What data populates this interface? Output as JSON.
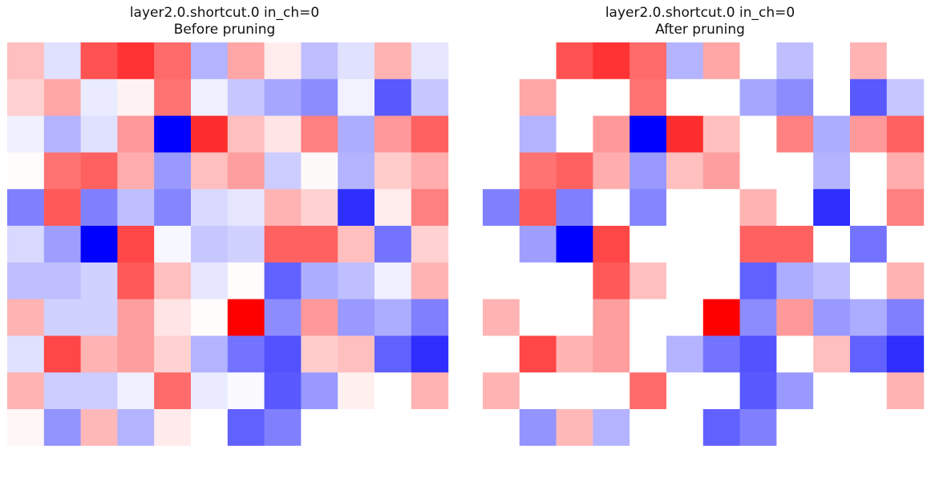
{
  "chart_data": [
    {
      "type": "heatmap",
      "title": "layer2.0.shortcut.0 in_ch=0",
      "subtitle": "Before pruning",
      "colormap": "bwr",
      "vmin": -1,
      "vmax": 1,
      "axes": "off",
      "rows": 12,
      "cols": 12,
      "values": [
        [
          0.25,
          -0.12,
          0.68,
          0.8,
          0.58,
          -0.3,
          0.35,
          0.07,
          -0.25,
          -0.12,
          0.3,
          -0.1
        ],
        [
          0.18,
          0.35,
          -0.08,
          0.05,
          0.55,
          -0.06,
          -0.22,
          -0.35,
          -0.45,
          -0.05,
          -0.65,
          -0.22
        ],
        [
          -0.06,
          -0.3,
          -0.12,
          0.4,
          -1.0,
          0.82,
          0.25,
          0.1,
          0.5,
          -0.32,
          0.4,
          0.62
        ],
        [
          0.01,
          0.55,
          0.62,
          0.32,
          -0.4,
          0.25,
          0.38,
          -0.2,
          0.02,
          -0.3,
          0.2,
          0.32
        ],
        [
          -0.5,
          0.65,
          -0.5,
          -0.25,
          -0.48,
          -0.15,
          -0.1,
          0.3,
          0.18,
          -0.82,
          0.07,
          0.5
        ],
        [
          -0.15,
          -0.38,
          -1.0,
          0.72,
          -0.03,
          -0.22,
          -0.18,
          0.62,
          0.62,
          0.25,
          -0.55,
          0.18
        ],
        [
          -0.25,
          -0.25,
          -0.18,
          0.65,
          0.25,
          -0.1,
          0.01,
          -0.62,
          -0.32,
          -0.25,
          -0.06,
          0.3
        ],
        [
          0.3,
          -0.18,
          -0.18,
          0.38,
          0.1,
          0.01,
          1.0,
          -0.45,
          0.4,
          -0.4,
          -0.32,
          -0.5
        ],
        [
          -0.12,
          0.72,
          0.3,
          0.38,
          0.18,
          -0.3,
          -0.55,
          -0.68,
          0.2,
          0.25,
          -0.62,
          -0.82
        ],
        [
          0.3,
          -0.2,
          -0.2,
          -0.06,
          0.58,
          -0.08,
          -0.02,
          -0.65,
          -0.4,
          0.06,
          0.0,
          0.3
        ],
        [
          0.03,
          -0.42,
          0.28,
          -0.3,
          0.08,
          0.0,
          -0.62,
          -0.5,
          0.0,
          0.0,
          0.0,
          0.0
        ],
        [
          0.0,
          0.0,
          0.0,
          0.0,
          0.0,
          0.0,
          0.0,
          0.0,
          0.0,
          0.0,
          0.0,
          0.0
        ]
      ]
    },
    {
      "type": "heatmap",
      "title": "layer2.0.shortcut.0 in_ch=0",
      "subtitle": "After pruning",
      "colormap": "bwr",
      "vmin": -1,
      "vmax": 1,
      "axes": "off",
      "rows": 12,
      "cols": 12,
      "values": [
        [
          0.0,
          0.0,
          0.68,
          0.8,
          0.58,
          -0.3,
          0.35,
          0.0,
          -0.25,
          0.0,
          0.3,
          0.0
        ],
        [
          0.0,
          0.35,
          0.0,
          0.0,
          0.55,
          0.0,
          0.0,
          -0.35,
          -0.45,
          0.0,
          -0.65,
          -0.22
        ],
        [
          0.0,
          -0.3,
          0.0,
          0.4,
          -1.0,
          0.82,
          0.25,
          0.0,
          0.5,
          -0.32,
          0.4,
          0.62
        ],
        [
          0.0,
          0.55,
          0.62,
          0.32,
          -0.4,
          0.25,
          0.38,
          0.0,
          0.0,
          -0.3,
          0.0,
          0.32
        ],
        [
          -0.5,
          0.65,
          -0.5,
          0.0,
          -0.48,
          0.0,
          0.0,
          0.3,
          0.0,
          -0.82,
          0.0,
          0.5
        ],
        [
          0.0,
          -0.38,
          -1.0,
          0.72,
          0.0,
          0.0,
          0.0,
          0.62,
          0.62,
          0.0,
          -0.55,
          0.0
        ],
        [
          0.0,
          0.0,
          0.0,
          0.65,
          0.25,
          0.0,
          0.0,
          -0.62,
          -0.32,
          -0.25,
          0.0,
          0.3
        ],
        [
          0.3,
          0.0,
          0.0,
          0.38,
          0.0,
          0.0,
          1.0,
          -0.45,
          0.4,
          -0.4,
          -0.32,
          -0.5
        ],
        [
          0.0,
          0.72,
          0.3,
          0.38,
          0.0,
          -0.3,
          -0.55,
          -0.68,
          0.0,
          0.25,
          -0.62,
          -0.82
        ],
        [
          0.3,
          0.0,
          0.0,
          0.0,
          0.58,
          0.0,
          0.0,
          -0.65,
          -0.4,
          0.0,
          0.0,
          0.3
        ],
        [
          0.0,
          -0.42,
          0.28,
          -0.3,
          0.0,
          0.0,
          -0.62,
          -0.5,
          0.0,
          0.0,
          0.0,
          0.0
        ],
        [
          0.0,
          0.0,
          0.0,
          0.0,
          0.0,
          0.0,
          0.0,
          0.0,
          0.0,
          0.0,
          0.0,
          0.0
        ]
      ]
    }
  ]
}
